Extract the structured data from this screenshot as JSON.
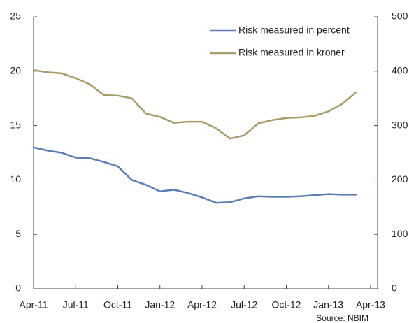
{
  "chart_data": {
    "type": "line",
    "source": "Source: NBIM",
    "x": [
      0,
      1,
      2,
      3,
      4,
      5,
      6,
      7,
      8,
      9,
      10,
      11,
      12,
      13,
      14,
      15,
      16,
      17,
      18,
      19,
      20,
      21,
      22,
      23
    ],
    "xlim": [
      0,
      24.5
    ],
    "xticks": [
      {
        "value": 0,
        "label": "Apr-11"
      },
      {
        "value": 3,
        "label": "Jul-11"
      },
      {
        "value": 6,
        "label": "Oct-11"
      },
      {
        "value": 9,
        "label": "Jan-12"
      },
      {
        "value": 12,
        "label": "Apr-12"
      },
      {
        "value": 15,
        "label": "Jul-12"
      },
      {
        "value": 18,
        "label": "Oct-12"
      },
      {
        "value": 21,
        "label": "Jan-13"
      },
      {
        "value": 24,
        "label": "Apr-13"
      }
    ],
    "ylim": [
      0,
      25
    ],
    "yticks": [
      0,
      5,
      10,
      15,
      20,
      25
    ],
    "y2lim": [
      0,
      500
    ],
    "y2ticks": [
      0,
      100,
      200,
      300,
      400,
      500
    ],
    "legend": "top-right",
    "series": [
      {
        "name": "Risk measured in percent",
        "color": "#5b7db3",
        "values": [
          13.0,
          12.7,
          12.5,
          12.05,
          12.0,
          11.65,
          11.25,
          10.0,
          9.55,
          8.95,
          9.1,
          8.8,
          8.4,
          7.9,
          7.95,
          8.3,
          8.5,
          8.45,
          8.45,
          8.5,
          8.6,
          8.7,
          8.65,
          8.65
        ]
      },
      {
        "name": "Risk measured in kroner",
        "color": "#a89c6a",
        "axis": "y2",
        "values": [
          402,
          398,
          396,
          387,
          376,
          356,
          355,
          350,
          322,
          316,
          305,
          307,
          307,
          295,
          276,
          282,
          304,
          310,
          314,
          315,
          318,
          326,
          340,
          362
        ]
      }
    ]
  }
}
